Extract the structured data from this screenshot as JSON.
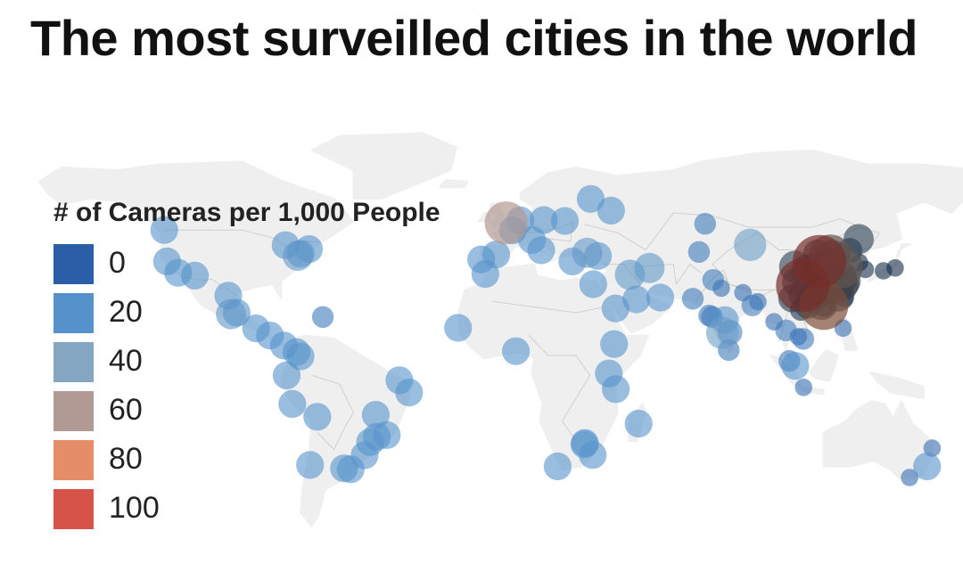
{
  "page": {
    "title": "The most surveilled cities in the world"
  },
  "legend": {
    "title": "# of Cameras per 1,000 People",
    "items": [
      {
        "label": "0",
        "color": "#2a5fa8"
      },
      {
        "label": "20",
        "color": "#5592cb"
      },
      {
        "label": "40",
        "color": "#85a6c0"
      },
      {
        "label": "60",
        "color": "#b29a94"
      },
      {
        "label": "80",
        "color": "#e58c68"
      },
      {
        "label": "100",
        "color": "#d6534a"
      }
    ]
  },
  "map": {
    "land_color": "#efefef",
    "border_color": "#cfcfcf",
    "cities": [
      {
        "lon": -123,
        "lat": 49,
        "value": 20
      },
      {
        "lon": -122,
        "lat": 38,
        "value": 20
      },
      {
        "lon": -118,
        "lat": 34,
        "value": 20
      },
      {
        "lon": -112,
        "lat": 33,
        "value": 20
      },
      {
        "lon": -100,
        "lat": 26,
        "value": 20
      },
      {
        "lon": -99,
        "lat": 19.5,
        "value": 25
      },
      {
        "lon": -97,
        "lat": 20,
        "value": 20
      },
      {
        "lon": -90,
        "lat": 14.5,
        "value": 20
      },
      {
        "lon": -85,
        "lat": 12,
        "value": 20
      },
      {
        "lon": -80,
        "lat": 8.5,
        "value": 20
      },
      {
        "lon": -79.4,
        "lat": 43.7,
        "value": 20
      },
      {
        "lon": -75,
        "lat": 40,
        "value": 25
      },
      {
        "lon": -74,
        "lat": 40.7,
        "value": 20
      },
      {
        "lon": -71,
        "lat": 42.3,
        "value": 20
      },
      {
        "lon": -66,
        "lat": 18.5,
        "value": 10
      },
      {
        "lon": -74,
        "lat": 4.7,
        "value": 20
      },
      {
        "lon": -75.5,
        "lat": 6.2,
        "value": 20
      },
      {
        "lon": -79,
        "lat": -2,
        "value": 20
      },
      {
        "lon": -77,
        "lat": -12,
        "value": 20
      },
      {
        "lon": -68,
        "lat": -16.5,
        "value": 20
      },
      {
        "lon": -47,
        "lat": -15.8,
        "value": 20
      },
      {
        "lon": -38.5,
        "lat": -3.7,
        "value": 20
      },
      {
        "lon": -35,
        "lat": -8,
        "value": 20
      },
      {
        "lon": -43,
        "lat": -22.9,
        "value": 20
      },
      {
        "lon": -46.6,
        "lat": -23.5,
        "value": 20
      },
      {
        "lon": -49,
        "lat": -25.4,
        "value": 20
      },
      {
        "lon": -51,
        "lat": -30,
        "value": 20
      },
      {
        "lon": -56,
        "lat": -34.9,
        "value": 20
      },
      {
        "lon": -58.4,
        "lat": -34.6,
        "value": 20
      },
      {
        "lon": -70.6,
        "lat": -33.4,
        "value": 20
      },
      {
        "lon": -0.1,
        "lat": 51.5,
        "value": 60
      },
      {
        "lon": 2.3,
        "lat": 48.9,
        "value": 20
      },
      {
        "lon": 4.9,
        "lat": 52.4,
        "value": 20
      },
      {
        "lon": 13.4,
        "lat": 52.5,
        "value": 20
      },
      {
        "lon": 21,
        "lat": 52.2,
        "value": 20
      },
      {
        "lon": 37.6,
        "lat": 55.8,
        "value": 20
      },
      {
        "lon": 30.3,
        "lat": 59.9,
        "value": 20
      },
      {
        "lon": 12.5,
        "lat": 41.9,
        "value": 20
      },
      {
        "lon": 9.2,
        "lat": 45.5,
        "value": 20
      },
      {
        "lon": -3.7,
        "lat": 40.4,
        "value": 20
      },
      {
        "lon": -9.1,
        "lat": 38.7,
        "value": 20
      },
      {
        "lon": 23.7,
        "lat": 38,
        "value": 20
      },
      {
        "lon": 29,
        "lat": 41,
        "value": 25
      },
      {
        "lon": 32.9,
        "lat": 39.9,
        "value": 20
      },
      {
        "lon": 44.4,
        "lat": 33.3,
        "value": 25
      },
      {
        "lon": 51.4,
        "lat": 35.7,
        "value": 25
      },
      {
        "lon": 31.2,
        "lat": 30,
        "value": 20
      },
      {
        "lon": 46.7,
        "lat": 24.7,
        "value": 20
      },
      {
        "lon": 55.3,
        "lat": 25.3,
        "value": 20
      },
      {
        "lon": 39.2,
        "lat": 21.5,
        "value": 20
      },
      {
        "lon": -7.6,
        "lat": 33.6,
        "value": 20
      },
      {
        "lon": -17.4,
        "lat": 14.7,
        "value": 20
      },
      {
        "lon": 3.4,
        "lat": 6.5,
        "value": 20
      },
      {
        "lon": 38.7,
        "lat": 9,
        "value": 20
      },
      {
        "lon": 36.8,
        "lat": -1.3,
        "value": 20
      },
      {
        "lon": 39.3,
        "lat": -6.8,
        "value": 20
      },
      {
        "lon": 47.5,
        "lat": -18.9,
        "value": 20
      },
      {
        "lon": 28,
        "lat": -26.2,
        "value": 20
      },
      {
        "lon": 28.2,
        "lat": -25.7,
        "value": 20
      },
      {
        "lon": 31,
        "lat": -29.9,
        "value": 20
      },
      {
        "lon": 18.4,
        "lat": -33.9,
        "value": 20
      },
      {
        "lon": 67,
        "lat": 24.9,
        "value": 10
      },
      {
        "lon": 74.3,
        "lat": 31.5,
        "value": 10
      },
      {
        "lon": 77.2,
        "lat": 28.6,
        "value": 5
      },
      {
        "lon": 72.9,
        "lat": 19,
        "value": 10
      },
      {
        "lon": 73.9,
        "lat": 18.5,
        "value": 10
      },
      {
        "lon": 78.5,
        "lat": 17.4,
        "value": 20
      },
      {
        "lon": 77.6,
        "lat": 12.9,
        "value": 30
      },
      {
        "lon": 80.3,
        "lat": 13.1,
        "value": 15
      },
      {
        "lon": 88.4,
        "lat": 22.6,
        "value": 10
      },
      {
        "lon": 90.4,
        "lat": 23.8,
        "value": 5
      },
      {
        "lon": 85,
        "lat": 27,
        "value": 5
      },
      {
        "lon": 79.9,
        "lat": 6.9,
        "value": 10
      },
      {
        "lon": 69.2,
        "lat": 41.3,
        "value": 10
      },
      {
        "lon": 71.4,
        "lat": 51.2,
        "value": 10
      },
      {
        "lon": 87.6,
        "lat": 43.8,
        "value": 30
      },
      {
        "lon": 100.5,
        "lat": 13.8,
        "value": 10
      },
      {
        "lon": 96.2,
        "lat": 16.8,
        "value": 5
      },
      {
        "lon": 105.8,
        "lat": 21,
        "value": 10
      },
      {
        "lon": 106.7,
        "lat": 10.8,
        "value": 10
      },
      {
        "lon": 104.9,
        "lat": 11.6,
        "value": 5
      },
      {
        "lon": 101.7,
        "lat": 3.1,
        "value": 10
      },
      {
        "lon": 103.8,
        "lat": 1.35,
        "value": 20
      },
      {
        "lon": 106.8,
        "lat": -6.2,
        "value": 5
      },
      {
        "lon": 121,
        "lat": 14.6,
        "value": 5
      },
      {
        "lon": 114.2,
        "lat": 22.3,
        "value": 10
      },
      {
        "lon": 121.5,
        "lat": 25,
        "value": 5
      },
      {
        "lon": 126.9,
        "lat": 37.6,
        "value": 5
      },
      {
        "lon": 129,
        "lat": 35.2,
        "value": 5
      },
      {
        "lon": 135.5,
        "lat": 34.7,
        "value": 5
      },
      {
        "lon": 139.7,
        "lat": 35.7,
        "value": 5
      },
      {
        "lon": 126.6,
        "lat": 45.8,
        "value": 25
      },
      {
        "lon": 123.4,
        "lat": 41.8,
        "value": 15
      },
      {
        "lon": 116.4,
        "lat": 39.9,
        "value": 60
      },
      {
        "lon": 117.2,
        "lat": 39.1,
        "value": 40
      },
      {
        "lon": 112.5,
        "lat": 37.9,
        "value": 100
      },
      {
        "lon": 108.9,
        "lat": 34.3,
        "value": 40
      },
      {
        "lon": 113.6,
        "lat": 34.7,
        "value": 50
      },
      {
        "lon": 117,
        "lat": 36.7,
        "value": 40
      },
      {
        "lon": 120.4,
        "lat": 36.1,
        "value": 60
      },
      {
        "lon": 118.8,
        "lat": 32.1,
        "value": 50
      },
      {
        "lon": 121.5,
        "lat": 31.2,
        "value": 30
      },
      {
        "lon": 120.2,
        "lat": 30.3,
        "value": 40
      },
      {
        "lon": 114.3,
        "lat": 30.6,
        "value": 40
      },
      {
        "lon": 104,
        "lat": 30.7,
        "value": 20
      },
      {
        "lon": 106.5,
        "lat": 29.6,
        "value": 100
      },
      {
        "lon": 113.3,
        "lat": 23.1,
        "value": 30
      },
      {
        "lon": 114.1,
        "lat": 22.5,
        "value": 80
      },
      {
        "lon": 119.3,
        "lat": 26.1,
        "value": 30
      },
      {
        "lon": 102.7,
        "lat": 25,
        "value": 20
      },
      {
        "lon": 106.7,
        "lat": 26.6,
        "value": 25
      },
      {
        "lon": 112.9,
        "lat": 28.2,
        "value": 35
      },
      {
        "lon": 115.9,
        "lat": 28.7,
        "value": 30
      },
      {
        "lon": 110.3,
        "lat": 25.3,
        "value": 25
      },
      {
        "lon": 108.3,
        "lat": 22.8,
        "value": 20
      },
      {
        "lon": 103.8,
        "lat": 36.1,
        "value": 30
      },
      {
        "lon": 111.7,
        "lat": 40.8,
        "value": 20
      },
      {
        "lon": 153,
        "lat": -27.5,
        "value": 5
      },
      {
        "lon": 151.2,
        "lat": -33.9,
        "value": 20
      },
      {
        "lon": 144.9,
        "lat": -37.8,
        "value": 5
      }
    ]
  }
}
